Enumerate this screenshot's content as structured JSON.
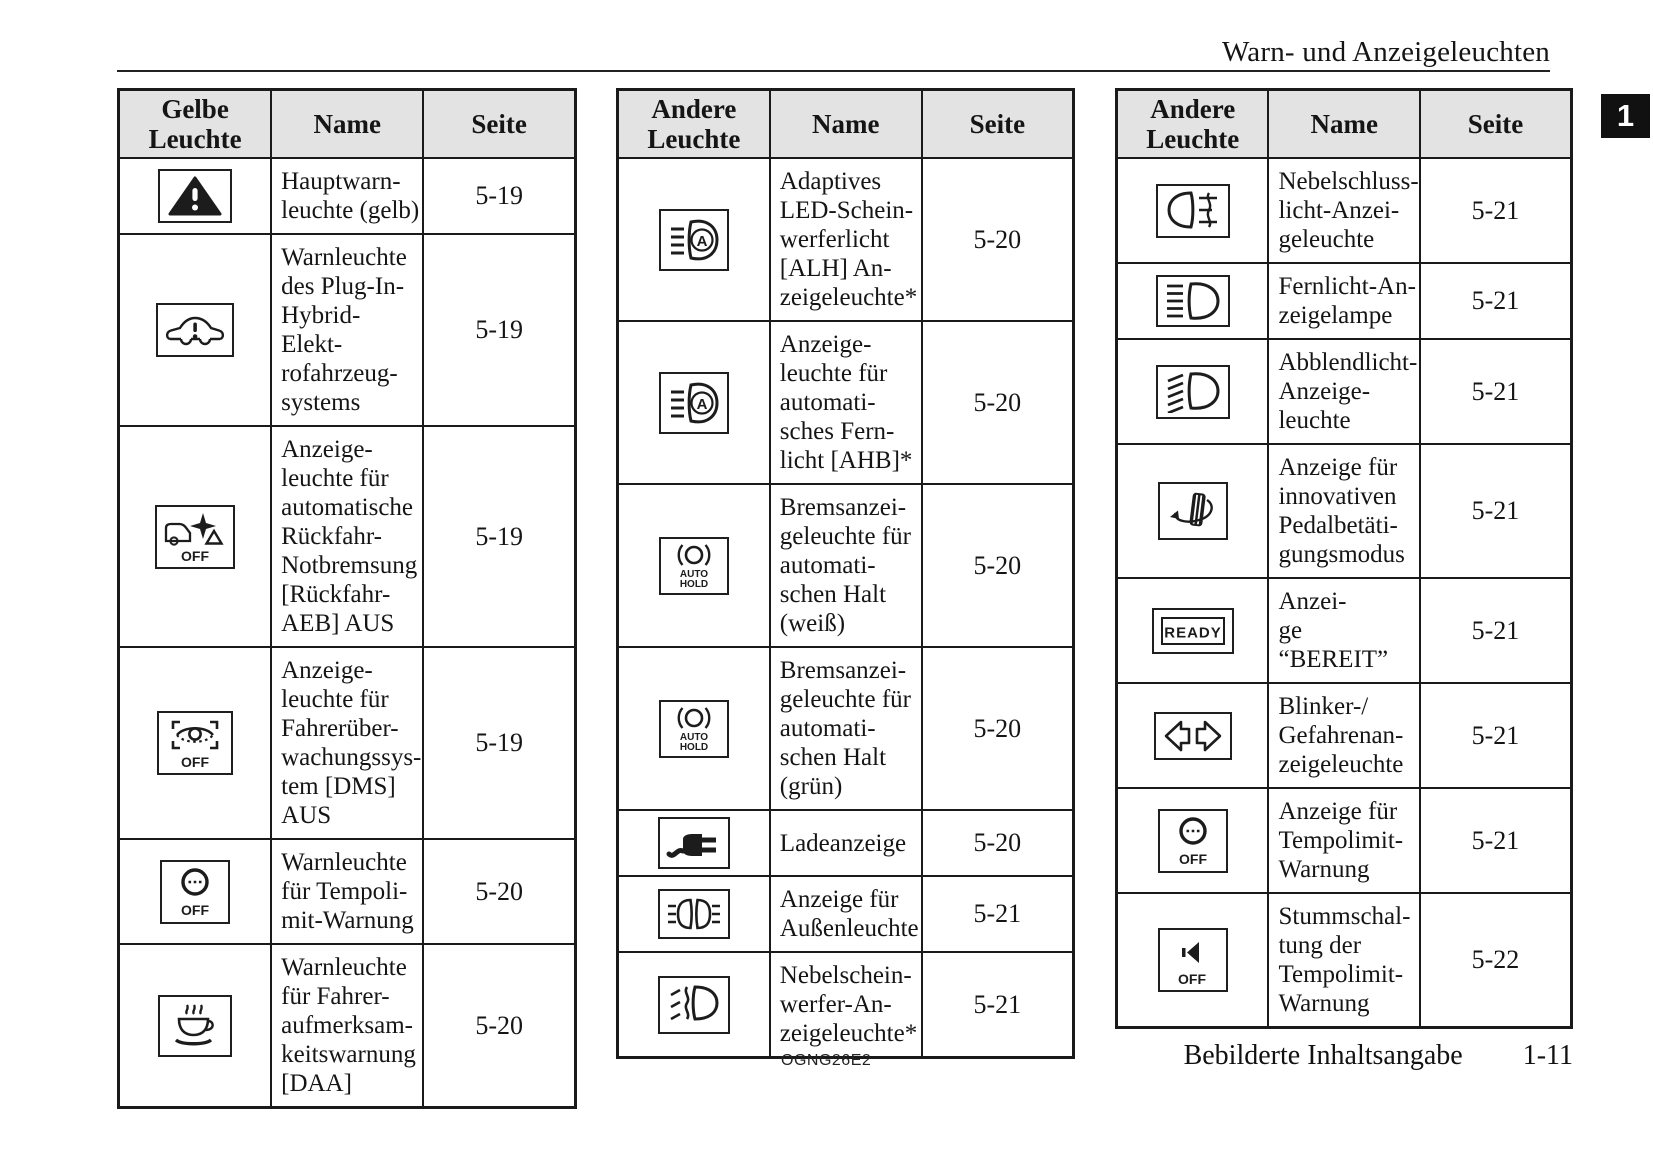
{
  "page": {
    "header_title": "Warn- und Anzeigeleuchten",
    "chapter_tab": "1",
    "footer_code": "OGNG26E2",
    "footer_label": "Bebilderte Inhaltsangabe",
    "footer_page": "1-11"
  },
  "colors": {
    "ink": "#1c1c1c",
    "header_bg": "#e3e3e3",
    "tab_bg": "#111111"
  },
  "tables": [
    {
      "headers": [
        "Gelbe\nLeuchte",
        "Name",
        "Seite"
      ],
      "rows": [
        {
          "icon": "main-warning-light-icon",
          "name": "Hauptwarn-\nleuchte (gelb)",
          "page": "5-19"
        },
        {
          "icon": "phev-warning-icon",
          "name": "Warnleuchte\ndes Plug-In-\nHybrid-Elekt-\nrofahrzeug-\nsystems",
          "page": "5-19"
        },
        {
          "icon": "rear-aeb-off-icon",
          "icon_label": "OFF",
          "name": "Anzeige-\nleuchte für\nautomatische\nRückfahr-\nNotbremsung\n[Rückfahr-\nAEB] AUS",
          "page": "5-19"
        },
        {
          "icon": "dms-off-icon",
          "icon_label": "OFF",
          "name": "Anzeige-\nleuchte für\nFahrerüber-\nwachungssys-\ntem [DMS]\nAUS",
          "page": "5-19"
        },
        {
          "icon": "speed-limit-warning-off-icon",
          "icon_label": "OFF",
          "name": "Warnleuchte\nfür Tempoli-\nmit-Warnung",
          "page": "5-20"
        },
        {
          "icon": "daa-cup-icon",
          "name": "Warnleuchte\nfür Fahrer-\naufmerksam-\nkeitswarnung\n[DAA]",
          "page": "5-20"
        }
      ]
    },
    {
      "headers": [
        "Andere\nLeuchte",
        "Name",
        "Seite"
      ],
      "rows": [
        {
          "icon": "adaptive-headlight-icon",
          "name": "Adaptives\nLED-Schein-\nwerferlicht\n[ALH] An-\nzeigeleuchte*",
          "page": "5-20"
        },
        {
          "icon": "auto-high-beam-icon",
          "name": "Anzeige-\nleuchte für\nautomati-\nsches Fern-\nlicht [AHB]*",
          "page": "5-20"
        },
        {
          "icon": "auto-hold-white-icon",
          "icon_label": "AUTO HOLD",
          "name": "Bremsanzei-\ngeleuchte für\nautomati-\nschen Halt\n(weiß)",
          "page": "5-20"
        },
        {
          "icon": "auto-hold-green-icon",
          "icon_label": "AUTO HOLD",
          "name": "Bremsanzei-\ngeleuchte für\nautomati-\nschen Halt\n(grün)",
          "page": "5-20"
        },
        {
          "icon": "charge-indicator-icon",
          "name": "Ladeanzeige",
          "page": "5-20"
        },
        {
          "icon": "exterior-lights-icon",
          "name": "Anzeige für\nAußenleuchte",
          "page": "5-21"
        },
        {
          "icon": "front-fog-light-icon",
          "name": "Nebelschein-\nwerfer-An-\nzeigeleuchte*",
          "page": "5-21"
        }
      ]
    },
    {
      "headers": [
        "Andere\nLeuchte",
        "Name",
        "Seite"
      ],
      "rows": [
        {
          "icon": "rear-fog-light-icon",
          "name": "Nebelschluss-\nlicht-Anzei-\ngeleuchte",
          "page": "5-21"
        },
        {
          "icon": "high-beam-icon",
          "name": "Fernlicht-An-\nzeigelampe",
          "page": "5-21"
        },
        {
          "icon": "low-beam-icon",
          "name": "Abblendlicht-\nAnzeige-\nleuchte",
          "page": "5-21"
        },
        {
          "icon": "pedal-mode-icon",
          "name": "Anzeige für\ninnovativen\nPedalbetäti-\ngungsmodus",
          "page": "5-21"
        },
        {
          "icon": "ready-indicator-icon",
          "icon_label": "READY",
          "name": "Anzei-\nge “BEREIT”",
          "page": "5-21"
        },
        {
          "icon": "turn-signal-icon",
          "name": "Blinker-/\nGefahrenan-\nzeigeleuchte",
          "page": "5-21"
        },
        {
          "icon": "speed-limit-warning-off-icon",
          "icon_label": "OFF",
          "name": "Anzeige für\nTempolimit-\nWarnung",
          "page": "5-21"
        },
        {
          "icon": "speed-limit-mute-off-icon",
          "icon_label": "OFF",
          "name": "Stummschal-\ntung der\nTempolimit-\nWarnung",
          "page": "5-22"
        }
      ]
    }
  ]
}
